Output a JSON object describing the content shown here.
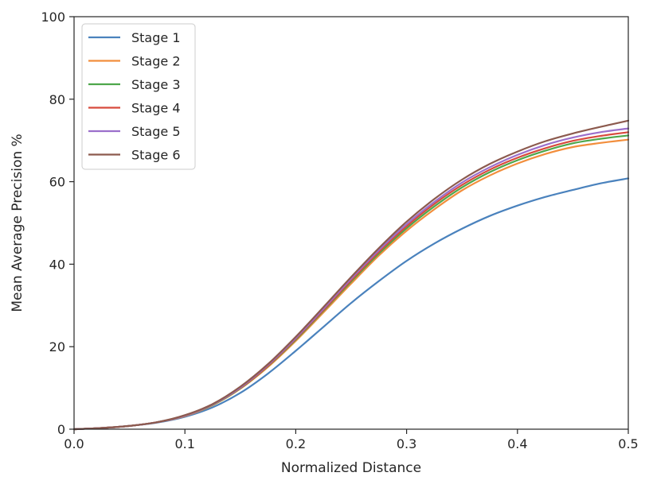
{
  "chart_data": {
    "type": "line",
    "title": "",
    "xlabel": "Normalized Distance",
    "ylabel": "Mean Average Precision %",
    "xlim": [
      0.0,
      0.5
    ],
    "ylim": [
      0,
      100
    ],
    "xticks": [
      "0.0",
      "0.1",
      "0.2",
      "0.3",
      "0.4",
      "0.5"
    ],
    "yticks": [
      "0",
      "20",
      "40",
      "60",
      "80",
      "100"
    ],
    "grid": false,
    "legend_position": "upper-left",
    "x": [
      0.0,
      0.025,
      0.05,
      0.075,
      0.1,
      0.125,
      0.15,
      0.175,
      0.2,
      0.225,
      0.25,
      0.275,
      0.3,
      0.325,
      0.35,
      0.375,
      0.4,
      0.425,
      0.45,
      0.475,
      0.5
    ],
    "series": [
      {
        "name": "Stage 1",
        "color": "#4a82bd",
        "values": [
          0.0,
          0.3,
          0.8,
          1.6,
          3.0,
          5.3,
          8.8,
          13.5,
          19.0,
          24.8,
          30.6,
          35.9,
          40.8,
          45.0,
          48.6,
          51.7,
          54.2,
          56.3,
          58.0,
          59.6,
          60.8
        ]
      },
      {
        "name": "Stage 2",
        "color": "#f28e3c",
        "values": [
          0.0,
          0.3,
          0.8,
          1.7,
          3.2,
          5.8,
          9.8,
          15.1,
          21.4,
          28.3,
          35.3,
          42.1,
          48.1,
          53.3,
          57.9,
          61.5,
          64.4,
          66.7,
          68.4,
          69.4,
          70.2
        ]
      },
      {
        "name": "Stage 3",
        "color": "#4ea74b",
        "values": [
          0.0,
          0.3,
          0.8,
          1.7,
          3.3,
          5.9,
          9.9,
          15.3,
          21.7,
          28.7,
          35.8,
          42.6,
          48.7,
          54.0,
          58.6,
          62.3,
          65.2,
          67.5,
          69.3,
          70.4,
          71.2
        ]
      },
      {
        "name": "Stage 4",
        "color": "#d84a3c",
        "values": [
          0.0,
          0.3,
          0.8,
          1.7,
          3.3,
          6.0,
          10.0,
          15.4,
          21.9,
          28.9,
          36.1,
          43.0,
          49.2,
          54.6,
          59.2,
          62.9,
          65.8,
          68.1,
          69.9,
          71.1,
          72.0
        ]
      },
      {
        "name": "Stage 5",
        "color": "#9b6fcb",
        "values": [
          0.0,
          0.3,
          0.8,
          1.7,
          3.3,
          6.0,
          10.1,
          15.6,
          22.1,
          29.2,
          36.5,
          43.4,
          49.7,
          55.1,
          59.8,
          63.5,
          66.5,
          68.9,
          70.7,
          72.0,
          72.9
        ]
      },
      {
        "name": "Stage 6",
        "color": "#8c5a4e",
        "values": [
          0.0,
          0.3,
          0.8,
          1.7,
          3.4,
          6.1,
          10.3,
          15.8,
          22.4,
          29.6,
          36.9,
          43.9,
          50.3,
          55.8,
          60.5,
          64.3,
          67.3,
          69.8,
          71.7,
          73.3,
          74.8
        ]
      }
    ]
  }
}
